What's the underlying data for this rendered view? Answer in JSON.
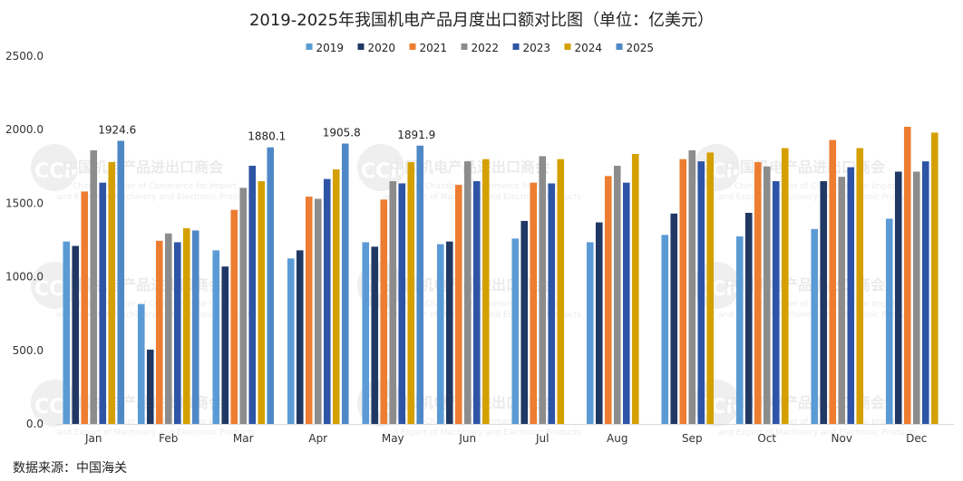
{
  "chart_data": {
    "type": "bar",
    "title": "2019-2025年我国机电产品月度出口额对比图（单位：亿美元）",
    "source": "数据来源：中国海关",
    "categories": [
      "Jan",
      "Feb",
      "Mar",
      "Apr",
      "May",
      "Jun",
      "Jul",
      "Aug",
      "Sep",
      "Oct",
      "Nov",
      "Dec"
    ],
    "ylim": [
      0,
      2500
    ],
    "yticks": [
      "0.0",
      "500.0",
      "1000.0",
      "1500.0",
      "2000.0",
      "2500.0"
    ],
    "ytick_values": [
      0,
      500,
      1000,
      1500,
      2000,
      2500
    ],
    "legend_position": "top",
    "grid": false,
    "series": [
      {
        "name": "2019",
        "color": "#5b9bd5",
        "values": [
          1240,
          815,
          1180,
          1125,
          1235,
          1222,
          1260,
          1235,
          1285,
          1275,
          1325,
          1395
        ]
      },
      {
        "name": "2020",
        "color": "#1f3864",
        "values": [
          1210,
          505,
          1070,
          1180,
          1205,
          1240,
          1380,
          1370,
          1430,
          1435,
          1650,
          1715
        ]
      },
      {
        "name": "2021",
        "color": "#ed7d31",
        "values": [
          1580,
          1245,
          1455,
          1545,
          1525,
          1625,
          1640,
          1685,
          1800,
          1780,
          1930,
          2020
        ]
      },
      {
        "name": "2022",
        "color": "#8c8c8c",
        "values": [
          1860,
          1295,
          1605,
          1530,
          1650,
          1785,
          1820,
          1755,
          1860,
          1750,
          1680,
          1715
        ]
      },
      {
        "name": "2023",
        "color": "#2e54a6",
        "values": [
          1640,
          1235,
          1755,
          1665,
          1635,
          1650,
          1635,
          1640,
          1785,
          1650,
          1745,
          1785
        ]
      },
      {
        "name": "2024",
        "color": "#d4a000",
        "values": [
          1780,
          1330,
          1650,
          1730,
          1780,
          1800,
          1800,
          1835,
          1845,
          1875,
          1875,
          1980
        ]
      },
      {
        "name": "2025",
        "color": "#4f88c6",
        "values": [
          1924.6,
          1315,
          1880.1,
          1905.8,
          1891.9,
          null,
          null,
          null,
          null,
          null,
          null,
          null
        ]
      }
    ],
    "data_labels": [
      {
        "series": "2025",
        "category": "Jan",
        "text": "1924.6"
      },
      {
        "series": "2025",
        "category": "Mar",
        "text": "1880.1"
      },
      {
        "series": "2025",
        "category": "Apr",
        "text": "1905.8"
      },
      {
        "series": "2025",
        "category": "May",
        "text": "1891.9"
      }
    ],
    "watermark": {
      "logo_text": "CCME",
      "org_cn": "中国机电产品进出口商会",
      "org_en_1": "China Chamber of Commerce for Import",
      "org_en_2": "and Export of Machinery and Electronic Products"
    }
  }
}
